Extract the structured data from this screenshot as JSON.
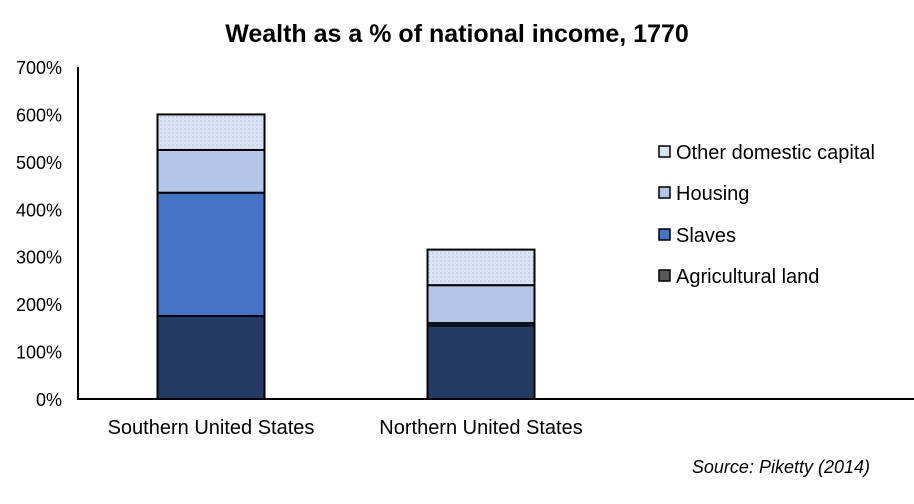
{
  "chart_data": {
    "type": "bar",
    "stacked": true,
    "title": "Wealth as a % of national income, 1770",
    "xlabel": "",
    "ylabel": "",
    "ylim": [
      0,
      700
    ],
    "yticks": [
      "0%",
      "100%",
      "200%",
      "300%",
      "400%",
      "500%",
      "600%",
      "700%"
    ],
    "ytick_values": [
      0,
      100,
      200,
      300,
      400,
      500,
      600,
      700
    ],
    "categories": [
      "Southern United States",
      "Northern United States"
    ],
    "series": [
      {
        "name": "Agricultural land",
        "values": [
          175,
          155
        ],
        "color": "#233a63",
        "legend_color": "#595959"
      },
      {
        "name": "Slaves",
        "values": [
          260,
          5
        ],
        "color": "#4472c4"
      },
      {
        "name": "Housing",
        "values": [
          90,
          80
        ],
        "color": "#b4c6e7"
      },
      {
        "name": "Other domestic capital",
        "values": [
          75,
          75
        ],
        "color": "#dae3f3"
      }
    ],
    "legend_position": "right",
    "grid": false,
    "annotation": "Source: Piketty (2014)"
  }
}
